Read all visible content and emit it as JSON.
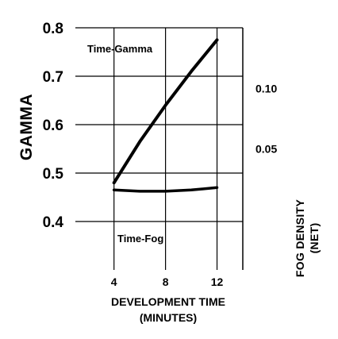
{
  "chart_data": {
    "type": "line",
    "x": [
      4,
      8,
      12
    ],
    "xlabel": [
      "DEVELOPMENT TIME",
      "(MINUTES)"
    ],
    "ylabel": "GAMMA",
    "y2label": [
      "FOG DENSITY",
      "(NET)"
    ],
    "xlim": [
      1,
      14
    ],
    "ylim": [
      0.3,
      0.8
    ],
    "xticks": [
      "4",
      "8",
      "12"
    ],
    "yticks": [
      "0.4",
      "0.5",
      "0.6",
      "0.7",
      "0.8"
    ],
    "y2ticks": [
      "0.10",
      "0.05"
    ],
    "y2lim": [
      -0.05,
      0.15
    ],
    "grid": true,
    "series": [
      {
        "name": "Time-Gamma",
        "axis": "left",
        "x": [
          4,
          6,
          8,
          10,
          12
        ],
        "values": [
          0.48,
          0.565,
          0.64,
          0.71,
          0.775
        ]
      },
      {
        "name": "Time-Fog",
        "axis": "right",
        "x": [
          4,
          6,
          8,
          10,
          12
        ],
        "values": [
          0.016,
          0.015,
          0.015,
          0.016,
          0.018
        ]
      }
    ],
    "annotations": [
      "Time-Gamma",
      "Time-Fog"
    ]
  }
}
